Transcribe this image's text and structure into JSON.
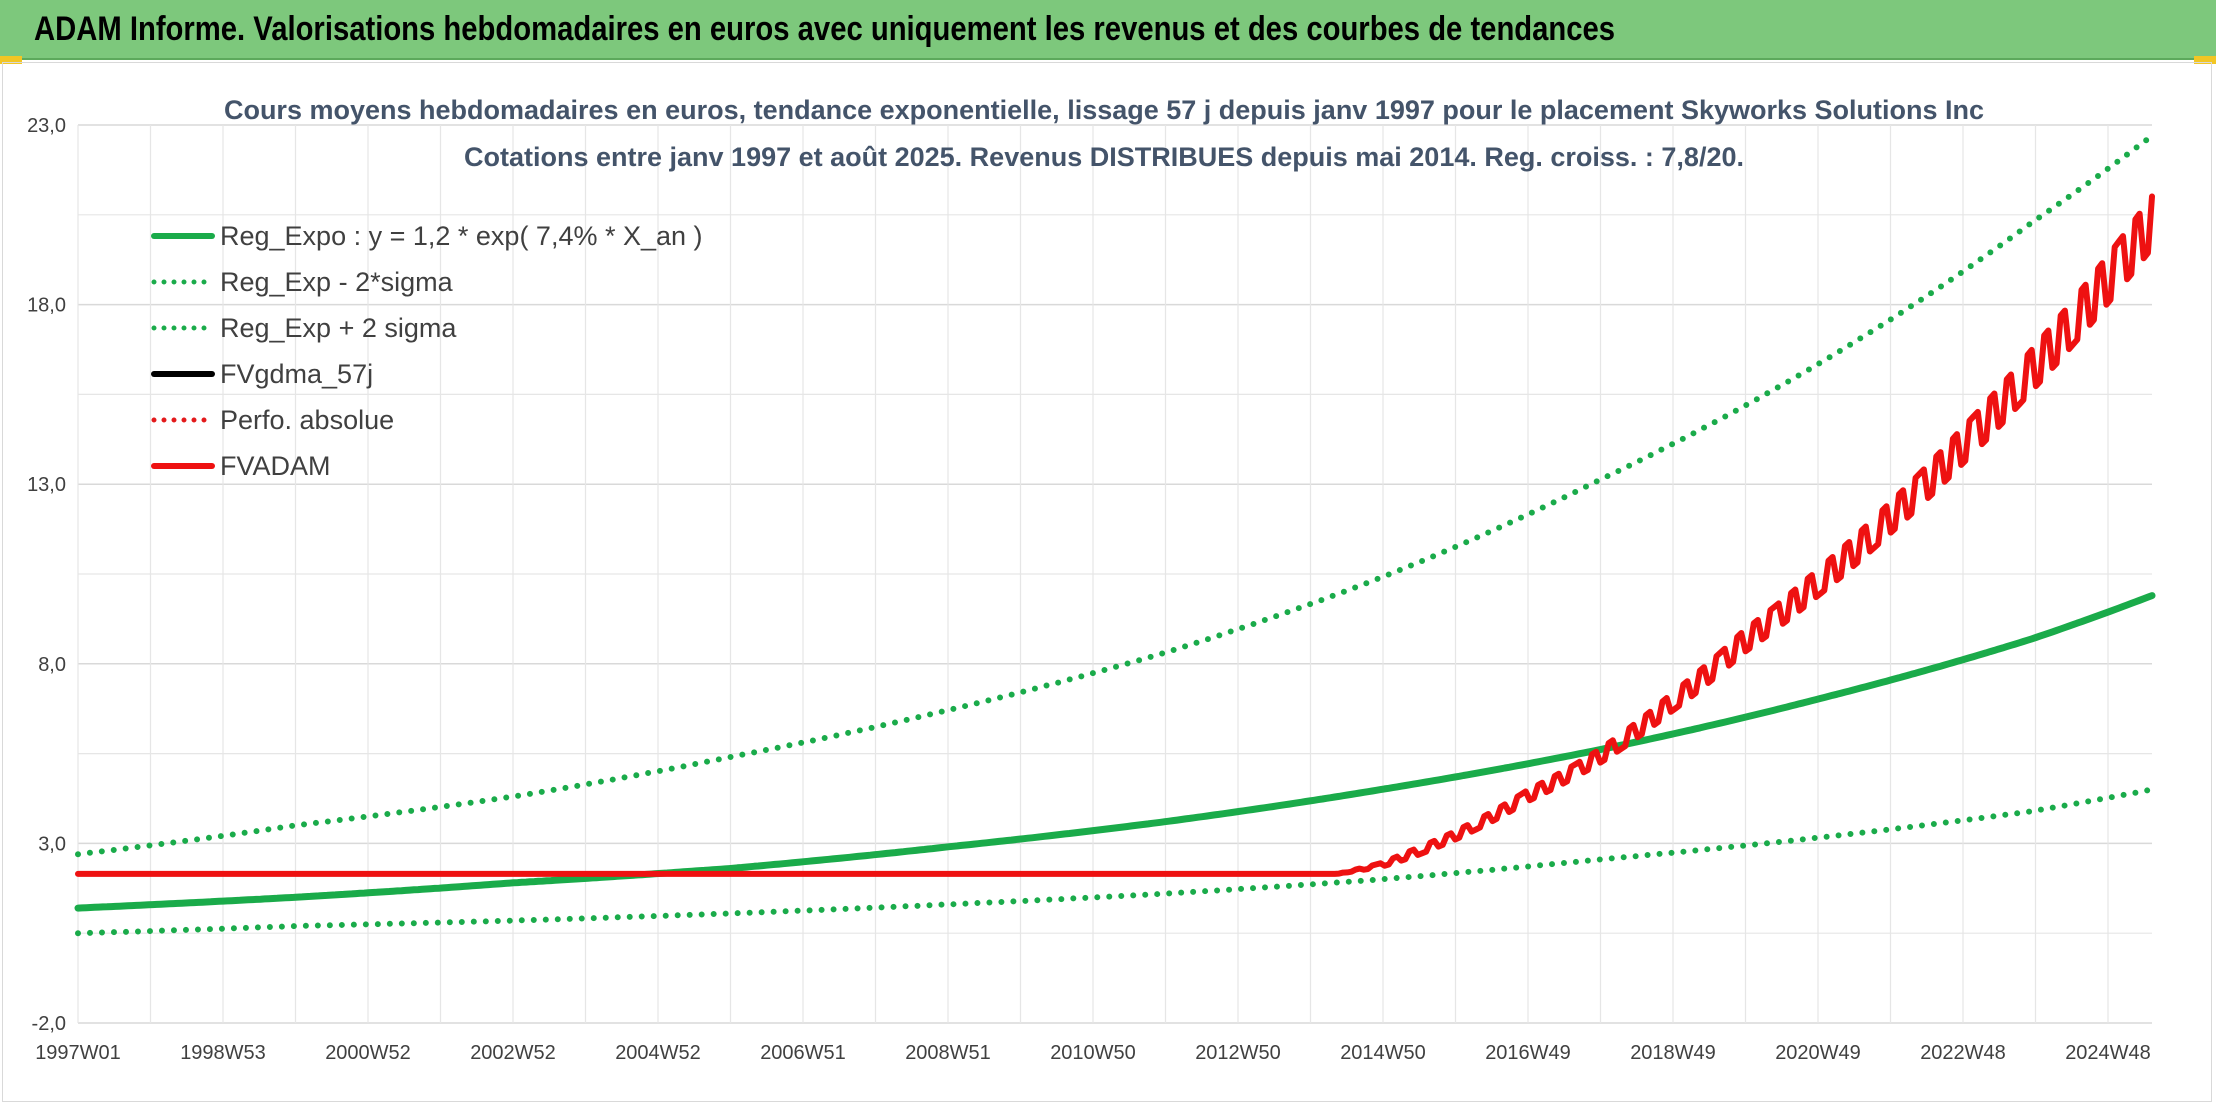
{
  "header": {
    "title": "ADAM Informe. Valorisations hebdomadaires en euros avec uniquement les revenus et des courbes de tendances"
  },
  "chart_data": {
    "type": "line",
    "title": "Cours moyens hebdomadaires en euros, tendance exponentielle, lissage 57 j depuis janv 1997 pour le placement Skyworks Solutions Inc",
    "subtitle": "Cotations entre janv 1997 et août 2025. Revenus DISTRIBUES depuis mai 2014. Reg. croiss. : 7,8/20.",
    "xlabel": "",
    "ylabel": "",
    "ylim": [
      -2.0,
      23.0
    ],
    "y_ticks": [
      "23,0",
      "18,0",
      "13,0",
      "8,0",
      "3,0",
      "-2,0"
    ],
    "x_ticks": [
      "1997W01",
      "1998W53",
      "2000W52",
      "2002W52",
      "2004W52",
      "2006W51",
      "2008W51",
      "2010W50",
      "2012W50",
      "2014W50",
      "2016W49",
      "2018W49",
      "2020W49",
      "2022W48",
      "2024W48"
    ],
    "xlim_years": [
      1997.0,
      2025.65
    ],
    "grid": true,
    "legend_position": "top-left",
    "series": [
      {
        "name": "Reg_Expo : y = 1,2 * exp( 7,4% *  X_an )",
        "color": "#1aab4a",
        "style": "solid",
        "x": [
          1997.0,
          2000.0,
          2003.0,
          2006.0,
          2009.0,
          2012.0,
          2015.0,
          2018.0,
          2021.0,
          2024.0,
          2025.65
        ],
        "y": [
          1.2,
          1.5,
          1.9,
          2.3,
          2.9,
          3.6,
          4.5,
          5.6,
          7.0,
          8.7,
          9.9
        ]
      },
      {
        "name": "Reg_Exp - 2*sigma",
        "color": "#1aab4a",
        "style": "dotted",
        "x": [
          1997.0,
          2000.0,
          2003.0,
          2006.0,
          2009.0,
          2012.0,
          2015.0,
          2018.0,
          2021.0,
          2024.0,
          2025.65
        ],
        "y": [
          0.5,
          0.7,
          0.85,
          1.05,
          1.3,
          1.6,
          2.0,
          2.55,
          3.15,
          3.9,
          4.5
        ]
      },
      {
        "name": "Reg_Exp + 2 sigma",
        "color": "#1aab4a",
        "style": "dotted",
        "x": [
          1997.0,
          2000.0,
          2003.0,
          2006.0,
          2009.0,
          2012.0,
          2015.0,
          2018.0,
          2021.0,
          2024.0,
          2025.65
        ],
        "y": [
          2.7,
          3.5,
          4.3,
          5.4,
          6.7,
          8.3,
          10.4,
          13.1,
          16.3,
          20.3,
          22.7
        ]
      },
      {
        "name": "FVgdma_57j",
        "color": "#000000",
        "style": "solid",
        "x": [
          1997.0,
          2014.4,
          2015.0,
          2016.0,
          2017.0,
          2018.0,
          2019.0,
          2020.0,
          2021.0,
          2022.0,
          2023.0,
          2024.0,
          2025.0,
          2025.65
        ],
        "y": [
          2.15,
          2.15,
          2.4,
          3.2,
          4.3,
          5.4,
          6.9,
          8.6,
          10.2,
          12.0,
          14.0,
          16.2,
          18.6,
          20.3
        ]
      },
      {
        "name": "Perfo. absolue",
        "color": "#e31a1c",
        "style": "dotted",
        "x": [],
        "y": []
      },
      {
        "name": "FVADAM",
        "color": "#ee1111",
        "style": "solid",
        "x": [
          1997.0,
          2014.4,
          2015.0,
          2016.0,
          2017.0,
          2018.0,
          2019.0,
          2020.0,
          2021.0,
          2022.0,
          2023.0,
          2024.0,
          2025.0,
          2025.65
        ],
        "y": [
          2.15,
          2.15,
          2.4,
          3.2,
          4.3,
          5.4,
          6.9,
          8.6,
          10.2,
          12.0,
          14.0,
          16.2,
          18.6,
          20.3
        ]
      }
    ]
  }
}
